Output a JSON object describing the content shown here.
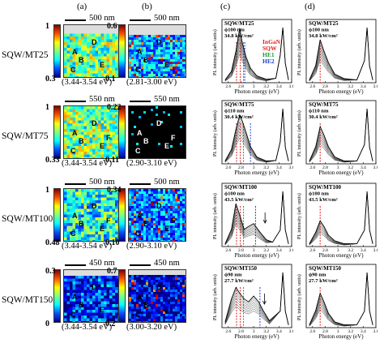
{
  "panel_letters": [
    "(a)",
    "(b)",
    "(c)",
    "(d)"
  ],
  "rows": [
    {
      "sample": "SQW/MT25",
      "scale_a": "500 nm",
      "scale_b": "500 nm",
      "cb_a": [
        "1",
        "0.3"
      ],
      "cb_b": [
        "0.6",
        "0.1"
      ],
      "range_a": "(3.44-3.54 eV)",
      "range_b": "(2.81-3.00 eV)",
      "map_labels_a": [
        "A",
        "B",
        "C",
        "D",
        "E"
      ],
      "map_labels_b": [
        "A",
        "B",
        "C",
        "D",
        "E"
      ],
      "legend_c": [
        "SQW/MT25",
        "ϕ100 nm",
        "34.8 kW/cm²"
      ],
      "legend_d": [
        "SQW/MT25",
        "ϕ100 nm",
        "34.8 kW/cm²"
      ]
    },
    {
      "sample": "SQW/MT75",
      "scale_a": "550 nm",
      "scale_b": "550 nm",
      "cb_a": [
        "1",
        "0.33"
      ],
      "cb_b": [
        "0.22",
        "0.11"
      ],
      "range_a": "(3.44-3.54 eV)",
      "range_b": "(2.90-3.10 eV)",
      "map_labels_a": [
        "A",
        "B",
        "C",
        "D",
        "E",
        "F"
      ],
      "map_labels_b": [
        "A",
        "B",
        "C",
        "D",
        "E",
        "F"
      ],
      "legend_c": [
        "SQW/MT75",
        "ϕ110 nm",
        "30.4 kW/cm²"
      ],
      "legend_d": [
        "SQW/MT75",
        "ϕ110 nm",
        "30.4 kW/cm²"
      ]
    },
    {
      "sample": "SQW/MT100",
      "scale_a": "500 nm",
      "scale_b": "500 nm",
      "cb_a": [
        "1",
        "0.48"
      ],
      "cb_b": [
        "0.34",
        "0.10"
      ],
      "range_a": "(3.44-3.54 eV)",
      "range_b": "(2.90-3.10 eV)",
      "map_labels_a": [
        "A",
        "B",
        "C",
        "D",
        "E",
        "F"
      ],
      "map_labels_b": [
        "A",
        "B",
        "C",
        "D",
        "E",
        "F"
      ],
      "legend_c": [
        "SQW/MT100",
        "ϕ100 nm",
        "43.5 kW/cm²"
      ],
      "legend_d": [
        "SQW/MT100",
        "ϕ100 nm",
        "43.5 kW/cm²"
      ]
    },
    {
      "sample": "SQW/MT150",
      "scale_a": "450 nm",
      "scale_b": "450 nm",
      "cb_a": [
        "0.3",
        "0"
      ],
      "cb_b": [
        "0.7",
        "0.2"
      ],
      "range_a": "(3.44-3.54 eV)",
      "range_b": "(3.00-3.20 eV)",
      "map_labels_a": [
        "A",
        "B",
        "C",
        "D",
        "E"
      ],
      "map_labels_b": [
        "A",
        "B",
        "C",
        "D",
        "E"
      ],
      "legend_c": [
        "SQW/MT150",
        "ϕ90 nm",
        "27.7 kW/cm²"
      ],
      "legend_d": [
        "SQW/MT150",
        "ϕ90 nm",
        "27.7 kW/cm²"
      ]
    }
  ],
  "spectrum": {
    "ylabel": "PL intensity (arb. units)",
    "xlabel": "Photon energy (eV)",
    "xticks": [
      "2.6",
      "2.8",
      "3",
      "3.2",
      "3.4",
      "3.6"
    ],
    "xlim": [
      2.5,
      3.6
    ]
  },
  "peak_legend": {
    "items": [
      "InGaN",
      "SQW",
      "HE1",
      "HE2"
    ],
    "colors": [
      "#e0201f",
      "#e0201f",
      "#1a9a3a",
      "#1f3fd6"
    ]
  },
  "chart_data": [
    {
      "type": "line",
      "title": "",
      "xlabel": "Photon energy (eV)",
      "ylabel": "PL intensity (arb. units)",
      "xlim": [
        2.5,
        3.6
      ],
      "grid": false,
      "note": "(c) column, MT25/MT75/MT100/MT150 panels",
      "series": [
        {
          "name": "SQW/MT25",
          "x": [
            2.55,
            2.65,
            2.72,
            2.78,
            2.82,
            2.88,
            2.95,
            3.05,
            3.2,
            3.35,
            3.42,
            3.46,
            3.5,
            3.55
          ],
          "values": [
            0.05,
            0.2,
            0.55,
            0.95,
            0.7,
            0.45,
            0.25,
            0.12,
            0.06,
            0.08,
            0.5,
            1.0,
            0.35,
            0.05
          ]
        },
        {
          "name": "SQW/MT75",
          "x": [
            2.55,
            2.65,
            2.72,
            2.78,
            2.82,
            2.88,
            2.95,
            3.05,
            3.2,
            3.35,
            3.42,
            3.46,
            3.5,
            3.55
          ],
          "values": [
            0.05,
            0.25,
            0.6,
            0.85,
            0.75,
            0.55,
            0.3,
            0.12,
            0.05,
            0.06,
            0.4,
            1.0,
            0.3,
            0.05
          ]
        },
        {
          "name": "SQW/MT100",
          "x": [
            2.55,
            2.65,
            2.72,
            2.78,
            2.85,
            2.92,
            3.0,
            3.1,
            3.2,
            3.3,
            3.42,
            3.46,
            3.5,
            3.55
          ],
          "values": [
            0.05,
            0.3,
            0.75,
            0.55,
            0.3,
            0.35,
            0.4,
            0.25,
            0.12,
            0.08,
            0.3,
            1.0,
            0.3,
            0.05
          ]
        },
        {
          "name": "SQW/MT150",
          "x": [
            2.55,
            2.65,
            2.72,
            2.78,
            2.85,
            2.92,
            3.0,
            3.08,
            3.15,
            3.25,
            3.42,
            3.46,
            3.5,
            3.55
          ],
          "values": [
            0.1,
            0.5,
            0.7,
            0.6,
            0.5,
            0.45,
            0.55,
            0.45,
            0.3,
            0.12,
            0.3,
            1.0,
            0.3,
            0.05
          ]
        }
      ]
    },
    {
      "type": "line",
      "title": "",
      "xlabel": "Photon energy (eV)",
      "ylabel": "PL intensity (arb. units)",
      "xlim": [
        2.5,
        3.6
      ],
      "grid": false,
      "note": "(d) column",
      "series": [
        {
          "name": "SQW/MT25",
          "x": [
            2.55,
            2.65,
            2.72,
            2.78,
            2.85,
            2.95,
            3.1,
            3.3,
            3.42,
            3.46,
            3.5,
            3.55
          ],
          "values": [
            0.05,
            0.3,
            0.75,
            0.55,
            0.35,
            0.15,
            0.07,
            0.05,
            0.4,
            1.0,
            0.3,
            0.05
          ]
        },
        {
          "name": "SQW/MT75",
          "x": [
            2.55,
            2.65,
            2.72,
            2.78,
            2.85,
            2.95,
            3.1,
            3.3,
            3.42,
            3.46,
            3.5,
            3.55
          ],
          "values": [
            0.05,
            0.3,
            0.65,
            0.5,
            0.3,
            0.12,
            0.05,
            0.05,
            0.35,
            1.0,
            0.3,
            0.05
          ]
        },
        {
          "name": "SQW/MT100",
          "x": [
            2.55,
            2.65,
            2.72,
            2.78,
            2.85,
            2.95,
            3.1,
            3.3,
            3.42,
            3.46,
            3.5,
            3.55
          ],
          "values": [
            0.05,
            0.25,
            0.45,
            0.35,
            0.2,
            0.1,
            0.05,
            0.05,
            0.3,
            1.0,
            0.3,
            0.05
          ]
        },
        {
          "name": "SQW/MT150",
          "x": [
            2.55,
            2.65,
            2.72,
            2.78,
            2.85,
            2.95,
            3.1,
            3.3,
            3.42,
            3.46,
            3.5,
            3.55
          ],
          "values": [
            0.05,
            0.3,
            0.6,
            0.45,
            0.25,
            0.1,
            0.05,
            0.05,
            0.3,
            1.0,
            0.3,
            0.05
          ]
        }
      ]
    }
  ]
}
